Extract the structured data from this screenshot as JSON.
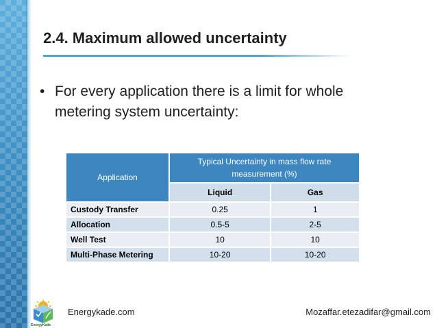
{
  "slide": {
    "title": "2.4. Maximum allowed uncertainty",
    "bullet": "For every application there is a limit for whole metering system uncertainty:"
  },
  "table": {
    "header_application": "Application",
    "header_typical": "Typical Uncertainty in mass flow rate measurement  (%)",
    "sub_liquid": "Liquid",
    "sub_gas": "Gas",
    "rows": [
      {
        "application": "Custody Transfer",
        "liquid": "0.25",
        "gas": "1"
      },
      {
        "application": "Allocation",
        "liquid": "0.5-5",
        "gas": "2-5"
      },
      {
        "application": "Well Test",
        "liquid": "10",
        "gas": "10"
      },
      {
        "application": "Multi-Phase Metering",
        "liquid": "10-20",
        "gas": "10-20"
      }
    ]
  },
  "footer": {
    "left": "Energykade.com",
    "right": "Mozaffar.etezadifar@gmail.com",
    "logo_caption": "EnergyKade"
  },
  "colors": {
    "accent": "#3e86c0",
    "band": "#3d8fc4"
  }
}
